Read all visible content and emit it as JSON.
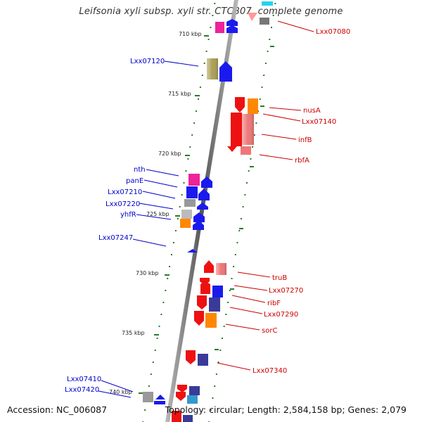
{
  "title": "Leifsonia xyli subsp. xyli str. CTCB07, complete genome",
  "footer": {
    "accession": "Accession: NC_006087",
    "stats": "Topology: circular; Length: 2,584,158 bp; Genes: 2,079"
  },
  "colors": {
    "red": "#ee1111",
    "blue": "#1a1aee",
    "magenta": "#ee2299",
    "orange": "#ff8800",
    "olive": "#aaa055",
    "gray": "#888888",
    "navy": "#3a3a99",
    "pink": "#ee7777",
    "label_left": "#0000cc",
    "label_right": "#cc0000",
    "tick": "#2a7a2a"
  },
  "kbp_labels": [
    "710 kbp",
    "715 kbp",
    "720 kbp",
    "725 kbp",
    "730 kbp",
    "735 kbp",
    "740 kbp"
  ],
  "left_labels": [
    "Lxx07120",
    "nth",
    "panE",
    "Lxx07210",
    "Lxx07220",
    "yhfR",
    "Lxx07247",
    "Lxx07410",
    "Lxx07420"
  ],
  "right_labels": [
    "Lxx07080",
    "nusA",
    "Lxx07140",
    "infB",
    "rbfA",
    "truB",
    "Lxx07270",
    "ribF",
    "Lxx07290",
    "sorC",
    "Lxx07340"
  ]
}
